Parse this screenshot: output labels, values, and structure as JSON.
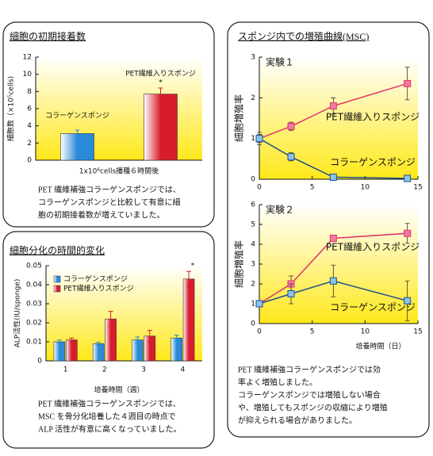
{
  "chart_data": [
    {
      "type": "bar",
      "title": "細胞の初期接着数",
      "categories": [
        "コラーゲンスポンジ",
        "PET繊維入りスポンジ"
      ],
      "values": [
        3.1,
        7.7
      ],
      "errors": [
        0.4,
        0.7
      ],
      "colors": [
        "#2a8ad8",
        "#d81c2c"
      ],
      "ylabel": "細胞数（×10⁵cells)",
      "xlabel": "1x10⁶cells播種６時間後",
      "ylim": [
        0,
        12
      ],
      "yticks": [
        0,
        2,
        4,
        6,
        8,
        10,
        12
      ],
      "annotations": [
        {
          "text": "*",
          "x": "PET繊維入りスポンジ"
        }
      ],
      "caption": [
        "PET 繊維補強コラーゲンスポンジでは、",
        "コラーゲンスポンジと比較して有意に細",
        "胞の初期接着数が増えていました。"
      ]
    },
    {
      "type": "bar",
      "title": "細胞分化の時間的変化",
      "categories": [
        "1",
        "2",
        "3",
        "4"
      ],
      "series": [
        {
          "name": "コラーゲンスポンジ",
          "color": "#2a8ad8",
          "values": [
            0.01,
            0.009,
            0.011,
            0.012
          ],
          "errors": [
            0.001,
            0.0008,
            0.0015,
            0.0015
          ]
        },
        {
          "name": "PET繊維入りスポンジ",
          "color": "#d81c2c",
          "values": [
            0.011,
            0.022,
            0.013,
            0.043
          ],
          "errors": [
            0.001,
            0.004,
            0.003,
            0.004
          ]
        }
      ],
      "ylabel": "ALP活性(IU/sponge)",
      "xlabel": "培養時間（週）",
      "ylim": [
        0,
        0.05
      ],
      "yticks": [
        0,
        0.01,
        0.02,
        0.03,
        0.04,
        0.05
      ],
      "legend": "top-left",
      "annotations": [
        {
          "text": "*",
          "x": "4"
        }
      ],
      "caption": [
        "PET 繊維補強コラーゲンスポンジでは、",
        "MSC を骨分化培養した４週目の時点で",
        "ALP 活性が有意に高くなっていました。"
      ]
    },
    {
      "type": "line",
      "title": "スポンジ内での増殖曲線(MSC)",
      "annotation": "実験１",
      "x": [
        0,
        3,
        7,
        14
      ],
      "series": [
        {
          "name": "PET繊維入りスポンジ",
          "color": "#e0336a",
          "values": [
            1.0,
            1.3,
            1.8,
            2.35
          ],
          "errors": [
            0.1,
            0.1,
            0.2,
            0.4
          ]
        },
        {
          "name": "コラーゲンスポンジ",
          "color": "#1f4f8f",
          "values": [
            1.0,
            0.55,
            0.05,
            0.02
          ],
          "errors": [
            0.15,
            0.1,
            0.05,
            0.05
          ]
        }
      ],
      "xlim": [
        0,
        15
      ],
      "xticks": [
        0,
        5,
        10,
        15
      ],
      "ylim": [
        0,
        3
      ],
      "yticks": [
        0,
        1,
        2,
        3
      ],
      "ylabel": "細胞増殖率"
    },
    {
      "type": "line",
      "annotation": "実験２",
      "x": [
        0,
        3,
        7,
        14
      ],
      "series": [
        {
          "name": "PET繊維入りスポンジ",
          "color": "#e0336a",
          "values": [
            1.0,
            2.0,
            4.3,
            4.55
          ],
          "errors": [
            0.15,
            0.4,
            0.1,
            0.5
          ]
        },
        {
          "name": "コラーゲンスポンジ",
          "color": "#1f4f8f",
          "values": [
            1.0,
            1.5,
            2.15,
            1.15
          ],
          "errors": [
            0.15,
            0.5,
            0.8,
            1.0
          ]
        }
      ],
      "xlim": [
        0,
        15
      ],
      "xticks": [
        0,
        5,
        10,
        15
      ],
      "ylim": [
        0,
        6
      ],
      "yticks": [
        0,
        1,
        2,
        3,
        4,
        5,
        6
      ],
      "ylabel": "細胞増殖率",
      "xlabel": "培養時間（日）",
      "caption": [
        "PET 繊維補強コラーゲンスポンジでは効",
        "率よく増殖しました。",
        "コラーゲンスポンジでは増殖しない場合",
        "や、増殖してもスポンジの収縮により増殖",
        "が抑えられる場合がありました。"
      ]
    }
  ]
}
